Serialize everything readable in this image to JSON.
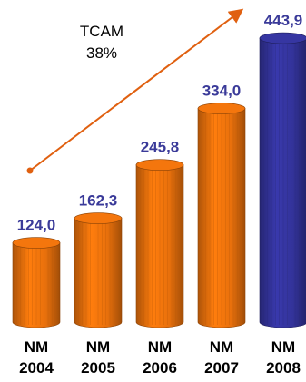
{
  "chart_data": {
    "type": "bar",
    "categories": [
      "NM\n2004",
      "NM\n2005",
      "NM\n2006",
      "NM\n2007",
      "NM\n2008"
    ],
    "category_lines": [
      [
        "NM",
        "2004"
      ],
      [
        "NM",
        "2005"
      ],
      [
        "NM",
        "2006"
      ],
      [
        "NM",
        "2007"
      ],
      [
        "NM",
        "2008"
      ]
    ],
    "values": [
      124.0,
      162.3,
      245.8,
      334.0,
      443.9
    ],
    "value_labels": [
      "124,0",
      "162,3",
      "245,8",
      "334,0",
      "443,9"
    ],
    "bar_colors": [
      "#E8700C",
      "#E8700C",
      "#E8700C",
      "#E8700C",
      "#33339A"
    ],
    "label_color": "#3A3A99",
    "trend_color": "#E06010",
    "annotation": {
      "line1": "TCAM",
      "line2": "38%"
    },
    "grid": false,
    "legend": "none",
    "ylim": [
      0,
      450
    ]
  }
}
